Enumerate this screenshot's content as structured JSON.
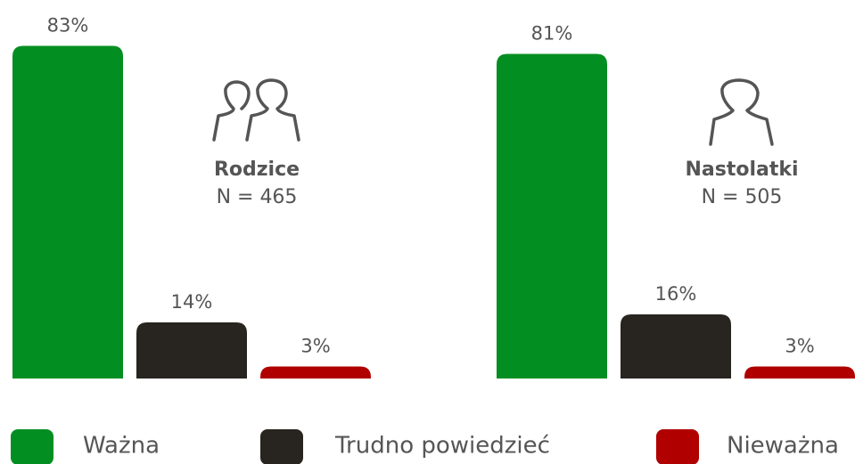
{
  "chart_data": [
    {
      "type": "bar",
      "title": "Rodzice",
      "subtitle": "N = 465",
      "values": [
        83,
        14,
        3
      ],
      "value_labels": [
        "83%",
        "14%",
        "3%"
      ]
    },
    {
      "type": "bar",
      "title": "Nastolatki",
      "subtitle": "N = 505",
      "values": [
        81,
        16,
        3
      ],
      "value_labels": [
        "81%",
        "16%",
        "3%"
      ]
    }
  ],
  "legend": {
    "items": [
      {
        "name": "Ważna",
        "color": "#038e22"
      },
      {
        "name": "Trudno powiedzieć",
        "color": "#282420"
      },
      {
        "name": "Nieważna",
        "color": "#b00000"
      }
    ]
  }
}
